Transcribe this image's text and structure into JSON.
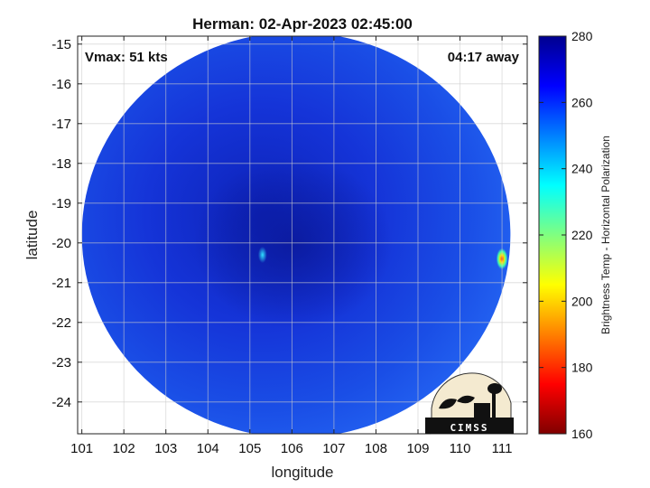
{
  "chart_data": {
    "type": "heatmap",
    "title": "Herman: 02-Apr-2023 02:45:00",
    "xlabel": "longitude",
    "ylabel": "latitude",
    "xlim": [
      100.9,
      111.6
    ],
    "ylim": [
      -24.8,
      -14.8
    ],
    "xticks": [
      101,
      102,
      103,
      104,
      105,
      106,
      107,
      108,
      109,
      110,
      111
    ],
    "yticks": [
      -15,
      -16,
      -17,
      -18,
      -19,
      -20,
      -21,
      -22,
      -23,
      -24
    ],
    "grid": true,
    "annotations": {
      "top_left": "Vmax: 51 kts",
      "top_right": "04:17 away"
    },
    "colorbar": {
      "label": "Brightness Temp - Horizontal Polarization",
      "range": [
        160,
        280
      ],
      "ticks": [
        280,
        260,
        240,
        220,
        200,
        180,
        160
      ],
      "colormap": "jet",
      "colors": [
        "#800000",
        "#ff0000",
        "#ff8000",
        "#ffff00",
        "#80ff80",
        "#00ffff",
        "#0080ff",
        "#0000ff",
        "#00008f"
      ]
    },
    "swath": {
      "shape": "circle",
      "center_lon": 106.1,
      "center_lat": -19.8,
      "radius_deg": 5.1,
      "typical_temp": 258,
      "eye_lon": 105.6,
      "eye_lat": -20.0,
      "eye_temp": 268,
      "hot_pixels": [
        {
          "lon": 111.0,
          "lat": -20.4,
          "temp": 200
        },
        {
          "lon": 105.3,
          "lat": -20.3,
          "temp": 238
        }
      ]
    }
  },
  "logo": {
    "text": "CIMSS"
  }
}
